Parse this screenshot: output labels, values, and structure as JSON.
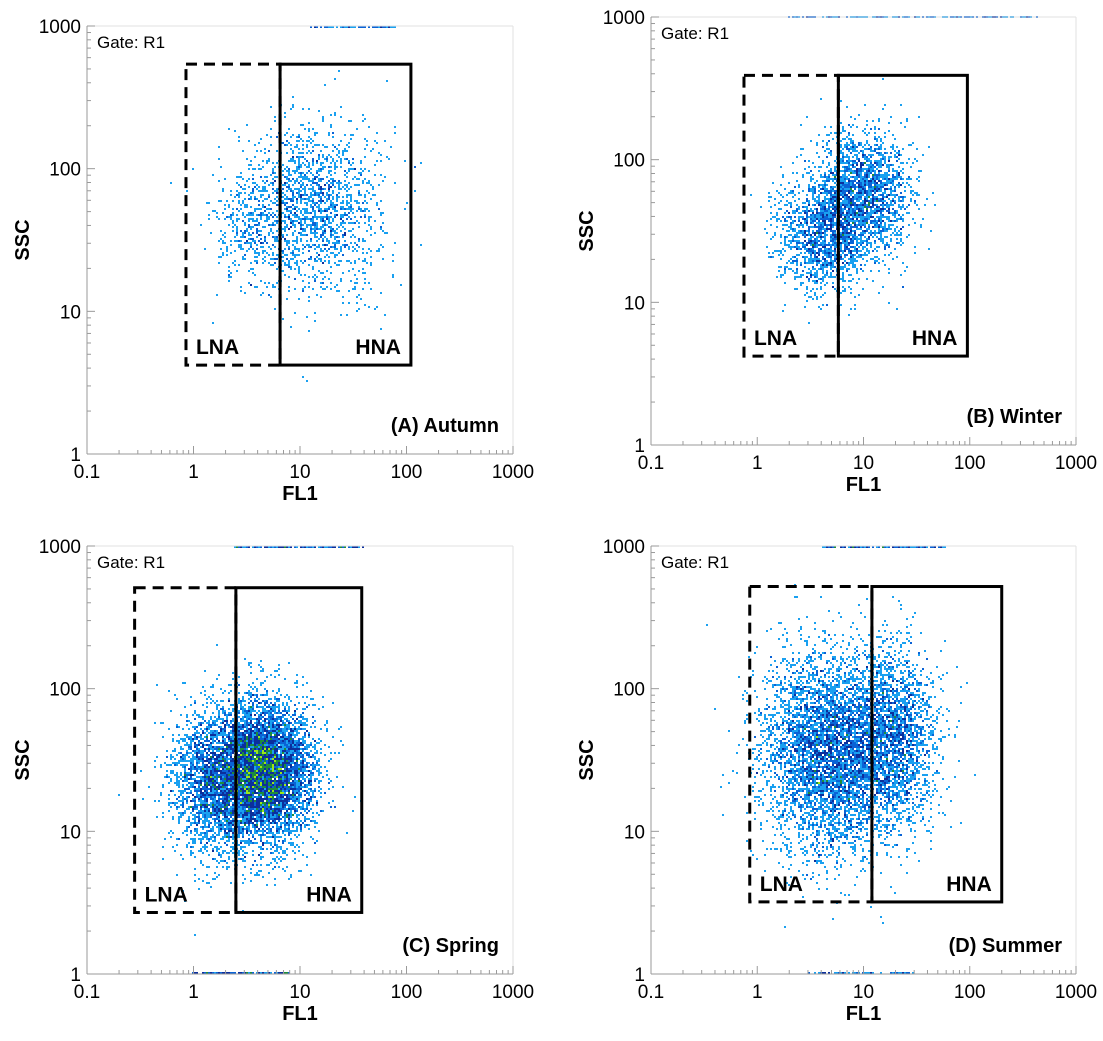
{
  "chart_data": [
    {
      "type": "scatter",
      "title": "(A) Autumn",
      "gate_text": "Gate: R1",
      "xlabel": "FL1",
      "ylabel": "SSC",
      "x_scale": "log",
      "y_scale": "log",
      "xlim": [
        0.1,
        1000
      ],
      "ylim": [
        1,
        1000
      ],
      "x_ticks": [
        "0.1",
        "1",
        "10",
        "100",
        "1000"
      ],
      "y_ticks": [
        "1",
        "10",
        "100",
        "1000"
      ],
      "gates": [
        {
          "name": "LNA",
          "style": "dashed",
          "x": [
            0.85,
            6.5
          ],
          "y": [
            4.2,
            540
          ]
        },
        {
          "name": "HNA",
          "style": "solid",
          "x": [
            6.5,
            110
          ],
          "y": [
            4.2,
            540
          ]
        }
      ],
      "clusters": [
        {
          "cx": 3.8,
          "cy": 38,
          "sx": 0.2,
          "sy": 0.22,
          "count": 420
        },
        {
          "cx": 14,
          "cy": 55,
          "sx": 0.3,
          "sy": 0.3,
          "count": 1600
        }
      ],
      "top_edge_events": {
        "x": [
          12,
          80
        ],
        "count": 60
      }
    },
    {
      "type": "scatter",
      "title": "(B) Winter",
      "gate_text": "Gate: R1",
      "xlabel": "FL1",
      "ylabel": "SSC",
      "x_scale": "log",
      "y_scale": "log",
      "xlim": [
        0.1,
        1000
      ],
      "ylim": [
        1,
        1000
      ],
      "x_ticks": [
        "0.1",
        "1",
        "10",
        "100",
        "1000"
      ],
      "y_ticks": [
        "1",
        "10",
        "100",
        "1000"
      ],
      "gates": [
        {
          "name": "LNA",
          "style": "dashed",
          "x": [
            0.75,
            5.8
          ],
          "y": [
            4.2,
            390
          ]
        },
        {
          "name": "HNA",
          "style": "solid",
          "x": [
            5.8,
            95
          ],
          "y": [
            4.2,
            390
          ]
        }
      ],
      "clusters": [
        {
          "cx": 4.2,
          "cy": 30,
          "sx": 0.22,
          "sy": 0.2,
          "count": 1500
        },
        {
          "cx": 10,
          "cy": 58,
          "sx": 0.22,
          "sy": 0.22,
          "count": 2000
        }
      ],
      "top_edge_events": {
        "x": [
          2,
          450
        ],
        "count": 150
      }
    },
    {
      "type": "scatter",
      "title": "(C) Spring",
      "gate_text": "Gate: R1",
      "xlabel": "FL1",
      "ylabel": "SSC",
      "x_scale": "log",
      "y_scale": "log",
      "xlim": [
        0.1,
        1000
      ],
      "ylim": [
        1,
        1000
      ],
      "x_ticks": [
        "0.1",
        "1",
        "10",
        "100",
        "1000"
      ],
      "y_ticks": [
        "1",
        "10",
        "100",
        "1000"
      ],
      "gates": [
        {
          "name": "LNA",
          "style": "dashed",
          "x": [
            0.28,
            2.5
          ],
          "y": [
            2.7,
            510
          ]
        },
        {
          "name": "HNA",
          "style": "solid",
          "x": [
            2.5,
            38
          ],
          "y": [
            2.7,
            510
          ]
        }
      ],
      "clusters": [
        {
          "cx": 1.6,
          "cy": 22,
          "sx": 0.2,
          "sy": 0.25,
          "count": 2600
        },
        {
          "cx": 4.8,
          "cy": 26,
          "sx": 0.22,
          "sy": 0.25,
          "count": 6000
        }
      ],
      "top_edge_events": {
        "x": [
          2.5,
          40
        ],
        "count": 140
      },
      "bottom_edge_events": {
        "x": [
          1,
          8
        ],
        "count": 120
      }
    },
    {
      "type": "scatter",
      "title": "(D) Summer",
      "gate_text": "Gate: R1",
      "xlabel": "FL1",
      "ylabel": "SSC",
      "x_scale": "log",
      "y_scale": "log",
      "xlim": [
        0.1,
        1000
      ],
      "ylim": [
        1,
        1000
      ],
      "x_ticks": [
        "0.1",
        "1",
        "10",
        "100",
        "1000"
      ],
      "y_ticks": [
        "1",
        "10",
        "100",
        "1000"
      ],
      "gates": [
        {
          "name": "LNA",
          "style": "dashed",
          "x": [
            0.85,
            12
          ],
          "y": [
            3.2,
            520
          ]
        },
        {
          "name": "HNA",
          "style": "solid",
          "x": [
            12,
            200
          ],
          "y": [
            3.2,
            520
          ]
        }
      ],
      "clusters": [
        {
          "cx": 4.5,
          "cy": 35,
          "sx": 0.3,
          "sy": 0.35,
          "count": 4500
        },
        {
          "cx": 18,
          "cy": 45,
          "sx": 0.22,
          "sy": 0.32,
          "count": 2500
        }
      ],
      "top_edge_events": {
        "x": [
          4,
          60
        ],
        "count": 120
      },
      "bottom_edge_events": {
        "x": [
          3,
          30
        ],
        "count": 60
      }
    }
  ]
}
